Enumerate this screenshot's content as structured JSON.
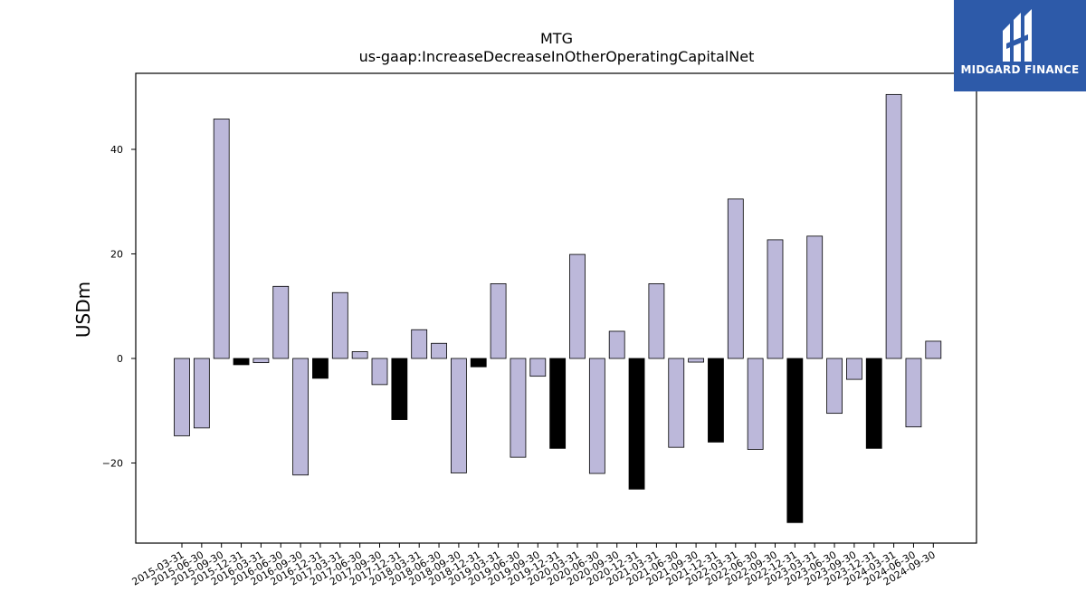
{
  "logo": {
    "text": "MIDGARD FINANCE"
  },
  "chart_data": {
    "type": "bar",
    "title": "MTG",
    "subtitle": "us-gaap:IncreaseDecreaseInOtherOperatingCapitalNet",
    "ylabel": "USDm",
    "ylim": [
      -35,
      55
    ],
    "yticks": [
      -20,
      0,
      20,
      40
    ],
    "colors": {
      "positive_quarter": "#bcb8da",
      "fourth_quarter": "#000000",
      "edge": "#000000"
    },
    "categories": [
      "2015-03-31",
      "2015-06-30",
      "2015-09-30",
      "2015-12-31",
      "2016-03-31",
      "2016-06-30",
      "2016-09-30",
      "2016-12-31",
      "2017-03-31",
      "2017-06-30",
      "2017-09-30",
      "2017-12-31",
      "2018-03-31",
      "2018-06-30",
      "2018-09-30",
      "2018-12-31",
      "2019-03-31",
      "2019-06-30",
      "2019-09-30",
      "2019-12-31",
      "2020-03-31",
      "2020-06-30",
      "2020-09-30",
      "2020-12-31",
      "2021-03-31",
      "2021-06-30",
      "2021-09-30",
      "2021-12-31",
      "2022-03-31",
      "2022-06-30",
      "2022-09-30",
      "2022-12-31",
      "2023-03-31",
      "2023-06-30",
      "2023-09-30",
      "2023-12-31",
      "2024-03-31",
      "2024-06-30",
      "2024-09-30"
    ],
    "values": [
      -14.8,
      -13.3,
      45.8,
      -1.2,
      -0.8,
      13.8,
      -22.3,
      -3.8,
      12.6,
      1.3,
      -5.0,
      -11.7,
      5.5,
      2.9,
      -21.9,
      -1.6,
      14.3,
      -18.9,
      -3.4,
      -17.2,
      19.9,
      -22.0,
      5.2,
      -25.0,
      14.3,
      -17.0,
      -0.7,
      -16.0,
      30.5,
      -17.4,
      22.7,
      -31.4,
      23.4,
      -10.5,
      -4.0,
      -17.2,
      50.5,
      -13.1,
      3.3
    ]
  }
}
